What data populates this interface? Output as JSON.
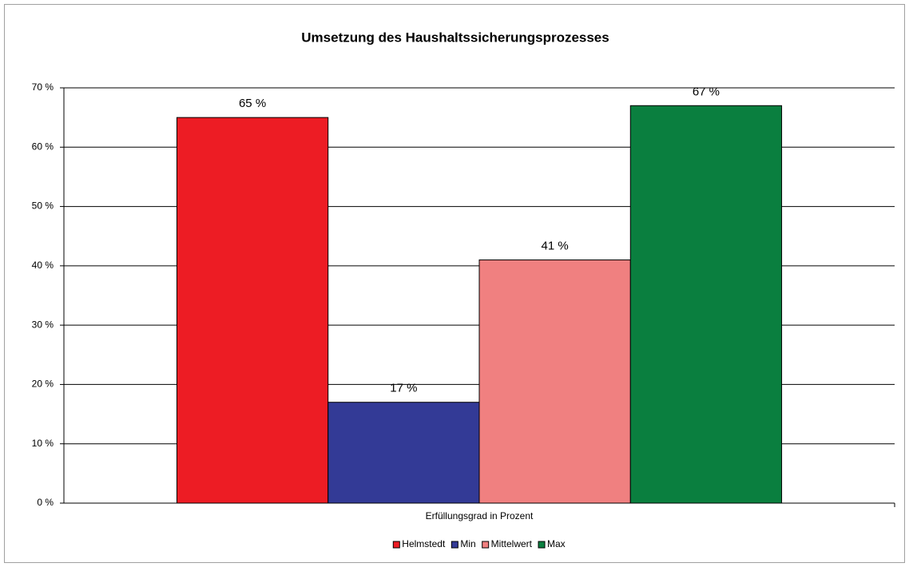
{
  "chart_data": {
    "type": "bar",
    "title": "Umsetzung des Haushaltssicherungsprozesses",
    "categories": [
      "Erfüllungsgrad in Prozent"
    ],
    "series": [
      {
        "name": "Helmstedt",
        "color": "#ed1c24",
        "values": [
          65
        ],
        "value_labels": [
          "65 %"
        ]
      },
      {
        "name": "Min",
        "color": "#333a96",
        "values": [
          17
        ],
        "value_labels": [
          "17 %"
        ]
      },
      {
        "name": "Mittelwert",
        "color": "#f08080",
        "values": [
          41
        ],
        "value_labels": [
          "41 %"
        ]
      },
      {
        "name": "Max",
        "color": "#0a7f3f",
        "values": [
          67
        ],
        "value_labels": [
          "67 %"
        ]
      }
    ],
    "ylim": [
      0,
      70
    ],
    "yticks": [
      {
        "value": 0,
        "label": "0 %"
      },
      {
        "value": 10,
        "label": "10 %"
      },
      {
        "value": 20,
        "label": "20 %"
      },
      {
        "value": 30,
        "label": "30 %"
      },
      {
        "value": 40,
        "label": "40 %"
      },
      {
        "value": 50,
        "label": "50 %"
      },
      {
        "value": 60,
        "label": "60 %"
      },
      {
        "value": 70,
        "label": "70 %"
      }
    ],
    "grid": true,
    "legend": "bottom"
  }
}
